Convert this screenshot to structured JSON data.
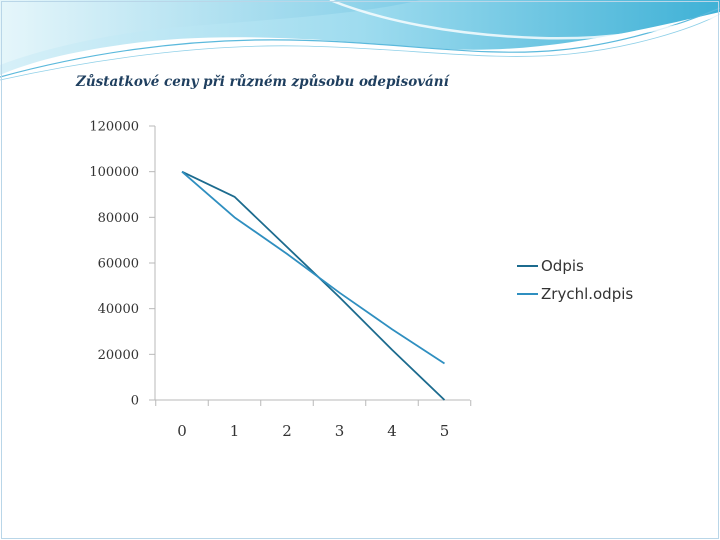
{
  "slide": {
    "title": "Zůstatkové ceny při různém způsobu odepisování"
  },
  "chart_data": {
    "type": "line",
    "title": "Zůstatkové ceny při různém způsobu odepisování",
    "xlabel": "",
    "ylabel": "",
    "categories": [
      "0",
      "1",
      "2",
      "3",
      "4",
      "5"
    ],
    "x": [
      0,
      1,
      2,
      3,
      4,
      5
    ],
    "series": [
      {
        "name": "Odpis",
        "values": [
          100000,
          89000,
          67000,
          45000,
          22000,
          0
        ],
        "color": "#1c6b8e"
      },
      {
        "name": "Zrychl.odpis",
        "values": [
          100000,
          80000,
          64000,
          47000,
          31000,
          16000
        ],
        "color": "#2f8fc0"
      }
    ],
    "ylim": [
      0,
      120000
    ],
    "yticks": [
      "0",
      "20000",
      "40000",
      "60000",
      "80000",
      "100000",
      "120000"
    ],
    "grid": false,
    "legend_position": "right"
  },
  "colors": {
    "axis": "#b8b8b8",
    "header_light": "#c9eaf5",
    "header_accent": "#49b3d8"
  }
}
